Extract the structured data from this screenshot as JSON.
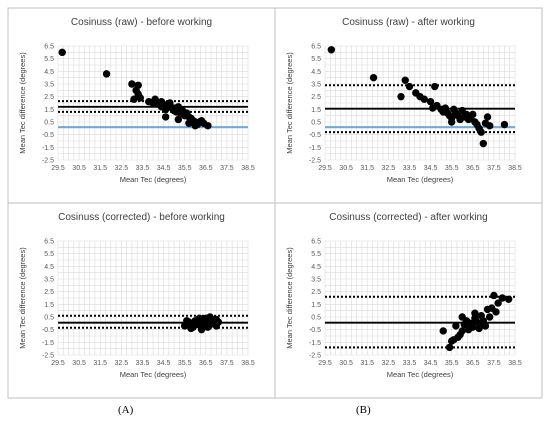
{
  "figure": {
    "column_labels": [
      "(A)",
      "(B)"
    ]
  },
  "chart_data": [
    {
      "type": "scatter",
      "title": "Cosinuss (raw) - before working",
      "xlabel": "Mean Tec (degrees)",
      "ylabel": "Mean Tec difference (degrees)",
      "xlim": [
        29.5,
        38.5
      ],
      "ylim": [
        -2.5,
        6.5
      ],
      "xticks": [
        "29.5",
        "30.5",
        "31.5",
        "32.5",
        "33.5",
        "34.5",
        "35.5",
        "36.5",
        "37.5",
        "38.5"
      ],
      "yticks": [
        "6.5",
        "5.5",
        "4.5",
        "3.5",
        "2.5",
        "1.5",
        "0.5",
        "-0.5",
        "-1.5",
        "-2.5"
      ],
      "grid": true,
      "mean_line": 1.7,
      "loa_upper": 2.15,
      "loa_lower": 1.3,
      "zero_line": 0.1,
      "colors": {
        "points": "#000000",
        "zero_line": "#5b9bd5",
        "mean_line": "#000000",
        "grid": "#d9d9d9"
      },
      "x": [
        29.7,
        31.8,
        33.0,
        33.3,
        33.2,
        33.3,
        33.1,
        33.4,
        33.8,
        34.0,
        34.1,
        34.2,
        34.3,
        34.4,
        34.5,
        34.6,
        34.4,
        34.7,
        34.8,
        34.9,
        35.0,
        35.1,
        35.2,
        35.0,
        35.3,
        35.4,
        35.5,
        35.6,
        35.7,
        35.8,
        35.9,
        36.0,
        36.1,
        36.2,
        36.3,
        36.4,
        36.6,
        34.6,
        35.2,
        35.7,
        36.0
      ],
      "y": [
        6.0,
        4.3,
        3.5,
        3.4,
        3.0,
        2.7,
        2.3,
        2.4,
        2.1,
        2.0,
        2.3,
        2.0,
        1.9,
        2.1,
        1.8,
        1.5,
        1.7,
        1.9,
        2.0,
        1.6,
        1.4,
        1.3,
        1.7,
        1.6,
        1.2,
        1.4,
        1.0,
        1.2,
        0.9,
        0.8,
        0.6,
        0.5,
        0.3,
        0.5,
        0.6,
        0.4,
        0.2,
        0.9,
        0.7,
        0.4,
        0.2
      ]
    },
    {
      "type": "scatter",
      "title": "Cosinuss (raw) - after working",
      "xlabel": "Mean Tec (degrees)",
      "ylabel": "Mean Tec difference (degrees)",
      "xlim": [
        29.5,
        38.5
      ],
      "ylim": [
        -2.5,
        6.5
      ],
      "xticks": [
        "29.5",
        "30.5",
        "31.5",
        "32.5",
        "33.5",
        "34.5",
        "35.5",
        "36.5",
        "37.5",
        "38.5"
      ],
      "yticks": [
        "6.5",
        "5.5",
        "4.5",
        "3.5",
        "2.5",
        "1.5",
        "0.5",
        "-0.5",
        "-1.5",
        "-2.5"
      ],
      "grid": true,
      "mean_line": 1.55,
      "loa_upper": 3.4,
      "loa_lower": -0.3,
      "zero_line": 0.1,
      "colors": {
        "points": "#000000",
        "zero_line": "#5b9bd5",
        "mean_line": "#000000",
        "grid": "#d9d9d9"
      },
      "x": [
        29.8,
        31.8,
        33.1,
        33.3,
        33.5,
        33.8,
        34.0,
        34.2,
        34.5,
        34.7,
        34.6,
        35.0,
        35.1,
        35.2,
        35.3,
        35.4,
        35.5,
        35.6,
        35.7,
        35.8,
        35.9,
        36.0,
        36.1,
        36.2,
        36.3,
        36.5,
        36.6,
        36.7,
        36.8,
        36.9,
        37.0,
        37.1,
        37.2,
        37.3,
        38.0,
        34.8,
        35.5,
        36.4
      ],
      "y": [
        6.2,
        4.0,
        2.5,
        3.8,
        3.3,
        2.8,
        2.5,
        2.3,
        2.1,
        3.3,
        1.6,
        1.5,
        1.3,
        1.6,
        1.2,
        1.0,
        0.8,
        1.5,
        1.2,
        1.0,
        0.7,
        1.4,
        0.9,
        1.1,
        0.7,
        1.1,
        0.5,
        0.3,
        0.0,
        -0.3,
        -1.2,
        0.4,
        0.9,
        0.2,
        0.3,
        1.8,
        0.5,
        0.8
      ]
    },
    {
      "type": "scatter",
      "title": "Cosinuss (corrected) - before working",
      "xlabel": "Mean Tec (degrees)",
      "ylabel": "Mean Tec difference (degrees)",
      "xlim": [
        29.5,
        38.5
      ],
      "ylim": [
        -2.5,
        6.5
      ],
      "xticks": [
        "29.5",
        "30.5",
        "31.5",
        "32.5",
        "33.5",
        "34.5",
        "35.5",
        "36.5",
        "37.5",
        "38.5"
      ],
      "yticks": [
        "6.5",
        "5.5",
        "4.5",
        "3.5",
        "2.5",
        "1.5",
        "0.5",
        "-0.5",
        "-1.5",
        "-2.5"
      ],
      "grid": true,
      "mean_line": 0.05,
      "loa_upper": 0.6,
      "loa_lower": -0.35,
      "zero_line": 0.05,
      "colors": {
        "points": "#000000",
        "zero_line": "#5b9bd5",
        "mean_line": "#000000",
        "grid": "#d9d9d9"
      },
      "x": [
        35.5,
        35.7,
        35.9,
        36.0,
        36.1,
        36.2,
        36.3,
        36.4,
        36.5,
        36.6,
        36.7,
        36.8,
        36.9,
        37.0,
        37.1,
        35.6,
        35.8,
        36.0,
        36.2,
        36.4,
        36.6,
        36.8,
        37.0,
        36.3,
        36.7
      ],
      "y": [
        -0.2,
        0.1,
        -0.3,
        0.2,
        -0.1,
        0.0,
        0.3,
        -0.2,
        0.4,
        0.1,
        -0.1,
        0.2,
        0.0,
        0.3,
        0.1,
        0.2,
        -0.4,
        -0.1,
        0.4,
        0.1,
        -0.3,
        0.3,
        -0.2,
        -0.5,
        0.5
      ]
    },
    {
      "type": "scatter",
      "title": "Cosinuss (corrected) - after working",
      "xlabel": "Mean Tec (degrees)",
      "ylabel": "Mean Tec difference (degrees)",
      "xlim": [
        29.5,
        38.5
      ],
      "ylim": [
        -2.5,
        6.5
      ],
      "xticks": [
        "29.5",
        "30.5",
        "31.5",
        "32.5",
        "33.5",
        "34.5",
        "35.5",
        "36.5",
        "37.5",
        "38.5"
      ],
      "yticks": [
        "6.5",
        "5.5",
        "4.5",
        "3.5",
        "2.5",
        "1.5",
        "0.5",
        "-0.5",
        "-1.5",
        "-2.5"
      ],
      "grid": true,
      "mean_line": 0.05,
      "loa_upper": 2.1,
      "loa_lower": -1.9,
      "zero_line": 0.05,
      "colors": {
        "points": "#000000",
        "zero_line": "#5b9bd5",
        "mean_line": "#000000",
        "grid": "#d9d9d9"
      },
      "x": [
        35.1,
        35.4,
        35.6,
        35.7,
        35.8,
        35.9,
        36.0,
        36.1,
        36.2,
        36.3,
        36.4,
        36.5,
        36.6,
        36.7,
        36.8,
        36.9,
        37.0,
        37.1,
        37.2,
        37.3,
        37.5,
        37.7,
        37.9,
        38.2,
        35.5,
        36.0,
        36.6,
        37.0,
        37.4,
        37.6
      ],
      "y": [
        -0.6,
        -1.9,
        -1.3,
        -0.2,
        -1.1,
        -0.9,
        -0.6,
        -0.1,
        0.2,
        -0.5,
        0.0,
        -0.3,
        0.4,
        0.1,
        -0.4,
        0.6,
        0.2,
        -0.2,
        1.1,
        0.5,
        2.2,
        1.6,
        2.0,
        1.9,
        -1.4,
        0.5,
        0.8,
        -0.1,
        1.2,
        0.9
      ]
    }
  ]
}
